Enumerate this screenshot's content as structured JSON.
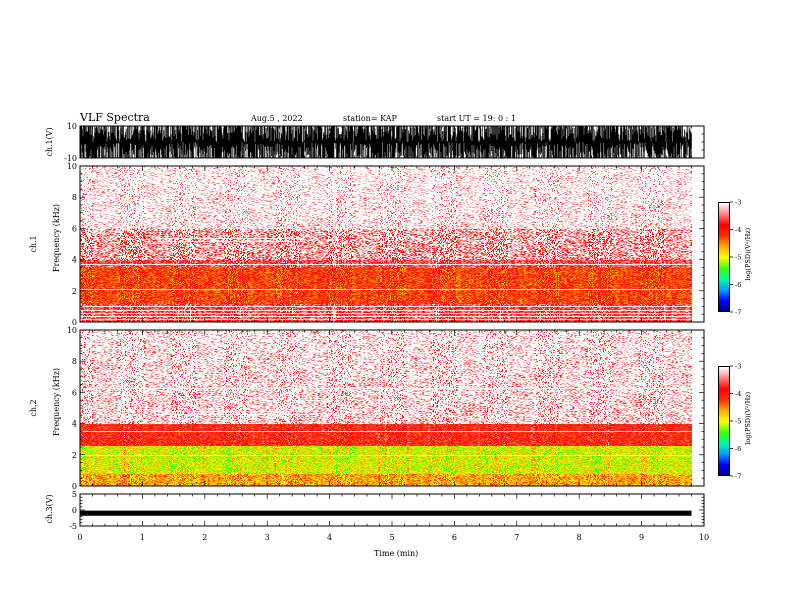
{
  "header": {
    "title": "VLF Spectra",
    "date": "Aug.5  , 2022",
    "station": "station= KAP",
    "start": "start  UT  =   19: 0  : 1"
  },
  "colors": {
    "colormap": [
      "#000080",
      "#0000ff",
      "#00a0ff",
      "#00ffa0",
      "#40ff00",
      "#ffff00",
      "#ffb000",
      "#ff3000",
      "#ff0000",
      "#ff8080",
      "#ffffff"
    ],
    "waveform": "#000000"
  },
  "chart_data": [
    {
      "type": "line",
      "panel": "ch1-waveform",
      "ylabel": "ch.1(V)",
      "ylim": [
        -10,
        10
      ],
      "y_ticks": [
        "10",
        "-10"
      ],
      "xlim": [
        0,
        10
      ],
      "description_of_values": "amplitude fluctuates between about -10 and 10 V over the full record"
    },
    {
      "type": "heatmap",
      "panel": "ch1-spectrogram",
      "ylabel": "ch.1\nFrequency  (kHz)",
      "ylim": [
        0,
        10
      ],
      "y_ticks": [
        "0",
        "2",
        "4",
        "6",
        "8",
        "10"
      ],
      "xlim": [
        0,
        9.8
      ],
      "colorbar": {
        "label": "log(PSD)(V²/Hz)",
        "range": [
          -7,
          -3
        ],
        "ticks": [
          "-3",
          "-4",
          "-5",
          "-6",
          "-7"
        ]
      },
      "bands": [
        {
          "freq_khz": [
            0.0,
            1.2
          ],
          "log_psd": -3.6
        },
        {
          "freq_khz": [
            1.2,
            3.5
          ],
          "log_psd": -4.2
        },
        {
          "freq_khz": [
            3.5,
            6.0
          ],
          "log_psd": -3.6
        },
        {
          "freq_khz": [
            6.0,
            10.0
          ],
          "log_psd": -3.2
        }
      ],
      "lines_khz": [
        0.2,
        0.4,
        0.6,
        0.8,
        1.0,
        2.1,
        3.7
      ],
      "line_segment": {
        "freq_khz": 5.4,
        "time_min": [
          1.25,
          3.6
        ]
      }
    },
    {
      "type": "heatmap",
      "panel": "ch2-spectrogram",
      "ylabel": "ch.2\nFrequency  (kHz)",
      "ylim": [
        0,
        10
      ],
      "y_ticks": [
        "0",
        "2",
        "4",
        "6",
        "8",
        "10"
      ],
      "xlim": [
        0,
        9.8
      ],
      "colorbar": {
        "label": "log(PSD)(V²/Hz)",
        "range": [
          -7,
          -3
        ],
        "ticks": [
          "-3",
          "-4",
          "-5",
          "-6",
          "-7"
        ]
      },
      "bands": [
        {
          "freq_khz": [
            0.0,
            0.8
          ],
          "log_psd": -4.6
        },
        {
          "freq_khz": [
            0.8,
            2.6
          ],
          "log_psd": -5.0
        },
        {
          "freq_khz": [
            2.6,
            4.0
          ],
          "log_psd": -3.9
        },
        {
          "freq_khz": [
            4.0,
            10.0
          ],
          "log_psd": -3.3
        }
      ],
      "lines_khz": [
        2.0,
        3.5,
        6.3
      ],
      "line_segment": {
        "freq_khz": 4.8,
        "time_min": [
          1.25,
          3.6
        ]
      }
    },
    {
      "type": "line",
      "panel": "ch3-waveform",
      "ylabel": "ch.3(V)",
      "ylim": [
        -5,
        5
      ],
      "y_ticks": [
        "5",
        "0",
        "-5"
      ],
      "xlim": [
        0,
        10
      ],
      "description_of_values": "narrow band near -1 V, nearly constant"
    }
  ],
  "x_axis": {
    "label": "Time  (min)",
    "ticks": [
      "0",
      "1",
      "2",
      "3",
      "4",
      "5",
      "6",
      "7",
      "8",
      "9",
      "10"
    ]
  }
}
